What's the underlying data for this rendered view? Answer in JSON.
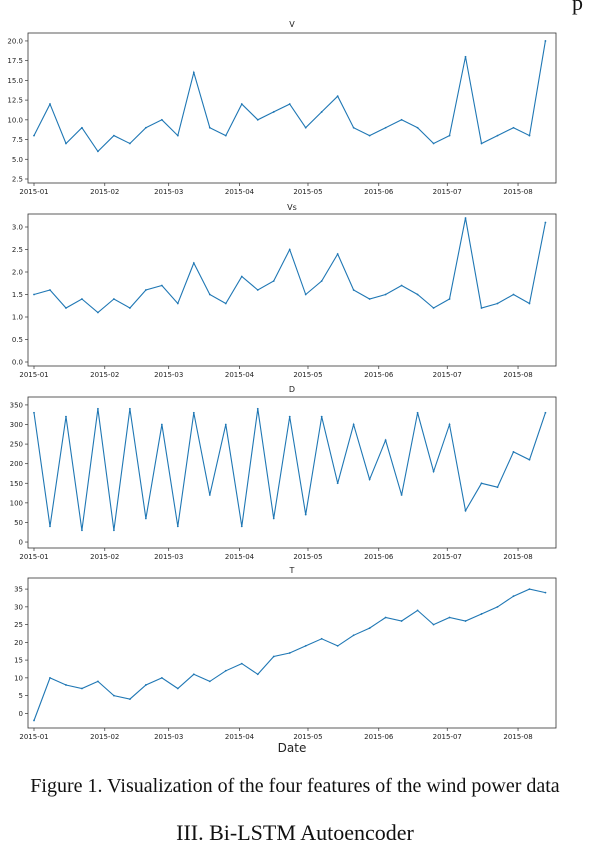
{
  "page_corner": "p",
  "caption": "Figure 1. Visualization of the four features of the wind power data",
  "section_heading": "III.  Bi-LSTM Autoencoder",
  "line_color": "#1f77b4",
  "chart_data": [
    {
      "type": "line",
      "title": "V",
      "xlabel": "",
      "ylabel": "",
      "x_ticks": [
        "2015-01",
        "2015-02",
        "2015-03",
        "2015-04",
        "2015-05",
        "2015-06",
        "2015-07",
        "2015-08"
      ],
      "xlim": [
        "2015-01-01",
        "2015-08-15"
      ],
      "ylim": [
        2.5,
        20.5
      ],
      "y_ticks": [
        "2.5",
        "5.0",
        "7.5",
        "10.0",
        "12.5",
        "15.0",
        "17.5",
        "20.0"
      ],
      "y_tick_values": [
        2.5,
        5.0,
        7.5,
        10.0,
        12.5,
        15.0,
        17.5,
        20.0
      ],
      "x": [
        "2015-01-01",
        "2015-01-08",
        "2015-01-15",
        "2015-01-22",
        "2015-01-29",
        "2015-02-05",
        "2015-02-12",
        "2015-02-19",
        "2015-02-26",
        "2015-03-05",
        "2015-03-12",
        "2015-03-19",
        "2015-03-26",
        "2015-04-02",
        "2015-04-09",
        "2015-04-16",
        "2015-04-23",
        "2015-04-30",
        "2015-05-07",
        "2015-05-14",
        "2015-05-21",
        "2015-05-28",
        "2015-06-04",
        "2015-06-11",
        "2015-06-18",
        "2015-06-25",
        "2015-07-02",
        "2015-07-09",
        "2015-07-16",
        "2015-07-23",
        "2015-07-30",
        "2015-08-06",
        "2015-08-13"
      ],
      "values": [
        8,
        12,
        7,
        9,
        6,
        8,
        7,
        9,
        10,
        8,
        16,
        9,
        8,
        12,
        10,
        11,
        12,
        9,
        11,
        13,
        9,
        8,
        9,
        10,
        9,
        7,
        8,
        18,
        7,
        8,
        9,
        8,
        20
      ],
      "grid": false,
      "legend": "none"
    },
    {
      "type": "line",
      "title": "Vs",
      "xlabel": "",
      "ylabel": "",
      "x_ticks": [
        "2015-01",
        "2015-02",
        "2015-03",
        "2015-04",
        "2015-05",
        "2015-06",
        "2015-07",
        "2015-08"
      ],
      "xlim": [
        "2015-01-01",
        "2015-08-15"
      ],
      "ylim": [
        0.0,
        3.2
      ],
      "y_ticks": [
        "0.0",
        "0.5",
        "1.0",
        "1.5",
        "2.0",
        "2.5",
        "3.0"
      ],
      "y_tick_values": [
        0.0,
        0.5,
        1.0,
        1.5,
        2.0,
        2.5,
        3.0
      ],
      "x": [
        "2015-01-01",
        "2015-01-08",
        "2015-01-15",
        "2015-01-22",
        "2015-01-29",
        "2015-02-05",
        "2015-02-12",
        "2015-02-19",
        "2015-02-26",
        "2015-03-05",
        "2015-03-12",
        "2015-03-19",
        "2015-03-26",
        "2015-04-02",
        "2015-04-09",
        "2015-04-16",
        "2015-04-23",
        "2015-04-30",
        "2015-05-07",
        "2015-05-14",
        "2015-05-21",
        "2015-05-28",
        "2015-06-04",
        "2015-06-11",
        "2015-06-18",
        "2015-06-25",
        "2015-07-02",
        "2015-07-09",
        "2015-07-16",
        "2015-07-23",
        "2015-07-30",
        "2015-08-06",
        "2015-08-13"
      ],
      "values": [
        1.5,
        1.6,
        1.2,
        1.4,
        1.1,
        1.4,
        1.2,
        1.6,
        1.7,
        1.3,
        2.2,
        1.5,
        1.3,
        1.9,
        1.6,
        1.8,
        2.5,
        1.5,
        1.8,
        2.4,
        1.6,
        1.4,
        1.5,
        1.7,
        1.5,
        1.2,
        1.4,
        3.2,
        1.2,
        1.3,
        1.5,
        1.3,
        3.1
      ],
      "grid": false,
      "legend": "none"
    },
    {
      "type": "line",
      "title": "D",
      "xlabel": "",
      "ylabel": "",
      "x_ticks": [
        "2015-01",
        "2015-02",
        "2015-03",
        "2015-04",
        "2015-05",
        "2015-06",
        "2015-07",
        "2015-08"
      ],
      "xlim": [
        "2015-01-01",
        "2015-08-15"
      ],
      "ylim": [
        -5,
        360
      ],
      "y_ticks": [
        "0",
        "50",
        "100",
        "150",
        "200",
        "250",
        "300",
        "350"
      ],
      "y_tick_values": [
        0,
        50,
        100,
        150,
        200,
        250,
        300,
        350
      ],
      "x": [
        "2015-01-01",
        "2015-01-08",
        "2015-01-15",
        "2015-01-22",
        "2015-01-29",
        "2015-02-05",
        "2015-02-12",
        "2015-02-19",
        "2015-02-26",
        "2015-03-05",
        "2015-03-12",
        "2015-03-19",
        "2015-03-26",
        "2015-04-02",
        "2015-04-09",
        "2015-04-16",
        "2015-04-23",
        "2015-04-30",
        "2015-05-07",
        "2015-05-14",
        "2015-05-21",
        "2015-05-28",
        "2015-06-04",
        "2015-06-11",
        "2015-06-18",
        "2015-06-25",
        "2015-07-02",
        "2015-07-09",
        "2015-07-16",
        "2015-07-23",
        "2015-07-30",
        "2015-08-06",
        "2015-08-13"
      ],
      "values": [
        330,
        40,
        320,
        30,
        340,
        30,
        340,
        60,
        300,
        40,
        330,
        120,
        300,
        40,
        340,
        60,
        320,
        70,
        320,
        150,
        300,
        160,
        260,
        120,
        330,
        180,
        300,
        80,
        150,
        140,
        230,
        210,
        330
      ],
      "grid": false,
      "legend": "none"
    },
    {
      "type": "line",
      "title": "T",
      "xlabel": "Date",
      "ylabel": "",
      "x_ticks": [
        "2015-01",
        "2015-02",
        "2015-03",
        "2015-04",
        "2015-05",
        "2015-06",
        "2015-07",
        "2015-08"
      ],
      "xlim": [
        "2015-01-01",
        "2015-08-15"
      ],
      "ylim": [
        -3,
        37
      ],
      "y_ticks": [
        "0",
        "5",
        "10",
        "15",
        "20",
        "25",
        "30",
        "35"
      ],
      "y_tick_values": [
        0,
        5,
        10,
        15,
        20,
        25,
        30,
        35
      ],
      "x": [
        "2015-01-01",
        "2015-01-08",
        "2015-01-15",
        "2015-01-22",
        "2015-01-29",
        "2015-02-05",
        "2015-02-12",
        "2015-02-19",
        "2015-02-26",
        "2015-03-05",
        "2015-03-12",
        "2015-03-19",
        "2015-03-26",
        "2015-04-02",
        "2015-04-09",
        "2015-04-16",
        "2015-04-23",
        "2015-04-30",
        "2015-05-07",
        "2015-05-14",
        "2015-05-21",
        "2015-05-28",
        "2015-06-04",
        "2015-06-11",
        "2015-06-18",
        "2015-06-25",
        "2015-07-02",
        "2015-07-09",
        "2015-07-16",
        "2015-07-23",
        "2015-07-30",
        "2015-08-06",
        "2015-08-13"
      ],
      "values": [
        -2,
        10,
        8,
        7,
        9,
        5,
        4,
        8,
        10,
        7,
        11,
        9,
        12,
        14,
        11,
        16,
        17,
        19,
        21,
        19,
        22,
        24,
        27,
        26,
        29,
        25,
        27,
        26,
        28,
        30,
        33,
        35,
        34
      ],
      "grid": false,
      "legend": "none"
    }
  ]
}
